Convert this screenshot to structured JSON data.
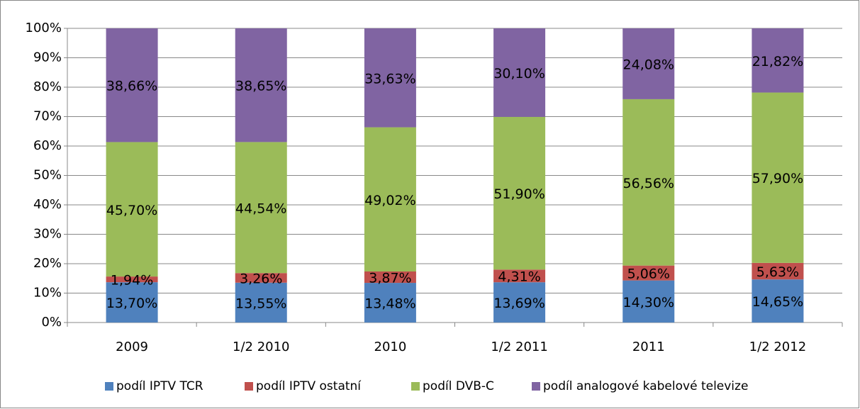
{
  "chart_data": {
    "type": "stacked_bar",
    "categories": [
      "2009",
      "1/2 2010",
      "2010",
      "1/2 2011",
      "2011",
      "1/2 2012"
    ],
    "series": [
      {
        "name": "podíl IPTV TCR",
        "color": "#4f81bd",
        "values": [
          13.7,
          13.55,
          13.48,
          13.69,
          14.3,
          14.65
        ],
        "value_labels": [
          "13,70%",
          "13,55%",
          "13,48%",
          "13,69%",
          "14,30%",
          "14,65%"
        ]
      },
      {
        "name": "podíl IPTV ostatní",
        "color": "#c0504d",
        "values": [
          1.94,
          3.26,
          3.87,
          4.31,
          5.06,
          5.63
        ],
        "value_labels": [
          "1,94%",
          "3,26%",
          "3,87%",
          "4,31%",
          "5,06%",
          "5,63%"
        ]
      },
      {
        "name": "podíl DVB-C",
        "color": "#9bbb59",
        "values": [
          45.7,
          44.54,
          49.02,
          51.9,
          56.56,
          57.9
        ],
        "value_labels": [
          "45,70%",
          "44,54%",
          "49,02%",
          "51,90%",
          "56,56%",
          "57,90%"
        ]
      },
      {
        "name": "podíl analogové kabelové televize",
        "color": "#8064a2",
        "values": [
          38.66,
          38.65,
          33.63,
          30.1,
          24.08,
          21.82
        ],
        "value_labels": [
          "38,66%",
          "38,65%",
          "33,63%",
          "30,10%",
          "24,08%",
          "21,82%"
        ]
      }
    ],
    "ylim": [
      0,
      100
    ],
    "yticks": [
      {
        "value": 0,
        "label": "0%"
      },
      {
        "value": 10,
        "label": "10%"
      },
      {
        "value": 20,
        "label": "20%"
      },
      {
        "value": 30,
        "label": "30%"
      },
      {
        "value": 40,
        "label": "40%"
      },
      {
        "value": 50,
        "label": "50%"
      },
      {
        "value": 60,
        "label": "60%"
      },
      {
        "value": 70,
        "label": "70%"
      },
      {
        "value": 80,
        "label": "80%"
      },
      {
        "value": 90,
        "label": "90%"
      },
      {
        "value": 100,
        "label": "100%"
      }
    ],
    "grid": true,
    "legend": "bottom"
  }
}
